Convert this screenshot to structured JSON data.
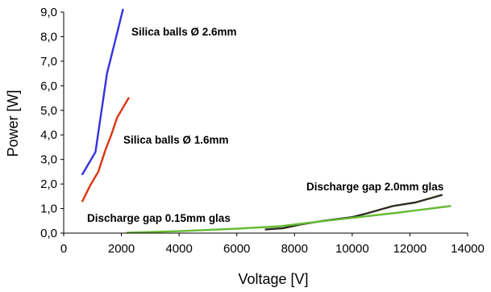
{
  "chart_data": {
    "type": "line",
    "xlabel": "Voltage [V]",
    "ylabel": "Power [W]",
    "xlim": [
      0,
      14000
    ],
    "ylim": [
      0,
      9
    ],
    "xticks": [
      0,
      2000,
      4000,
      6000,
      8000,
      10000,
      12000,
      14000
    ],
    "yticks": [
      "0,0",
      "1,0",
      "2,0",
      "3,0",
      "4,0",
      "5,0",
      "6,0",
      "7,0",
      "8,0",
      "9,0"
    ],
    "grid": false,
    "legend": "none",
    "series": [
      {
        "color": "#3333dd",
        "x": [
          650,
          1100,
          1500,
          1800,
          2050
        ],
        "y": [
          2.4,
          3.3,
          6.5,
          7.9,
          9.1
        ]
      },
      {
        "color": "#dd3311",
        "x": [
          650,
          900,
          1200,
          1450,
          1650,
          1850,
          2050,
          2250
        ],
        "y": [
          1.3,
          1.9,
          2.5,
          3.4,
          4.0,
          4.7,
          5.1,
          5.5
        ]
      },
      {
        "color": "#2e2a1e",
        "x": [
          7000,
          7600,
          8200,
          9000,
          10000,
          10500,
          11400,
          12200,
          12800,
          13100
        ],
        "y": [
          0.15,
          0.2,
          0.35,
          0.5,
          0.65,
          0.8,
          1.1,
          1.25,
          1.45,
          1.55
        ]
      },
      {
        "color": "#66bb33",
        "x": [
          2200,
          4000,
          6000,
          7500,
          8500,
          10000,
          11500,
          13400
        ],
        "y": [
          0.02,
          0.08,
          0.18,
          0.28,
          0.42,
          0.62,
          0.82,
          1.1
        ]
      }
    ],
    "annotations": [
      "Silica balls Ø 2.6mm",
      "Silica balls Ø 1.6mm",
      "Discharge gap 2.0mm glas",
      "Discharge gap 0.15mm glas"
    ]
  }
}
